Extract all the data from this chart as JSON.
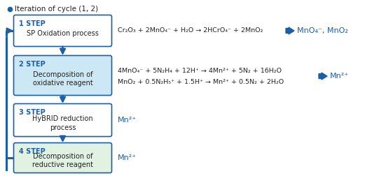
{
  "title": "Iteration of cycle (1, 2)",
  "bg_color": "#ffffff",
  "arrow_color": "#1a5fa8",
  "box_colors": {
    "step1": "#ffffff",
    "step2": "#cce8f4",
    "step3": "#ffffff",
    "step4": "#e2f2e2"
  },
  "steps": [
    {
      "num": "1 STEP",
      "label": "SP Oxidation process"
    },
    {
      "num": "2 STEP",
      "label": "Decomposition of\noxidative reagent"
    },
    {
      "num": "3 STEP",
      "label": "HyBRID reduction\nprocess"
    },
    {
      "num": "4 STEP",
      "label": "Decomposition of\nreductive reagent"
    }
  ],
  "eq1": "Cr₂O₃ + 2MnO₄⁻ + H₂O → 2HCrO₄⁻ + 2MnO₂",
  "eq2a": "4MnO₄⁻ + 5N₂H₄ + 12H⁺ → 4Mn²⁺ + 5N₂ + 16H₂O",
  "eq2b": "MnO₂ + 0.5N₂H₅⁺ + 1.5H⁺ → Mn²⁺ + 0.5N₂ + 2H₂O",
  "eq3": "Mn²⁺",
  "eq4": "Mn²⁺",
  "result1": "MnO₄⁻, MnO₂",
  "result2": "Mn²⁺",
  "text_color": "#222222",
  "blue_text_color": "#1a5fa8",
  "eq_fontsize": 6.8,
  "result_fontsize": 8.0,
  "step_num_fontsize": 7.0,
  "step_label_fontsize": 7.0
}
